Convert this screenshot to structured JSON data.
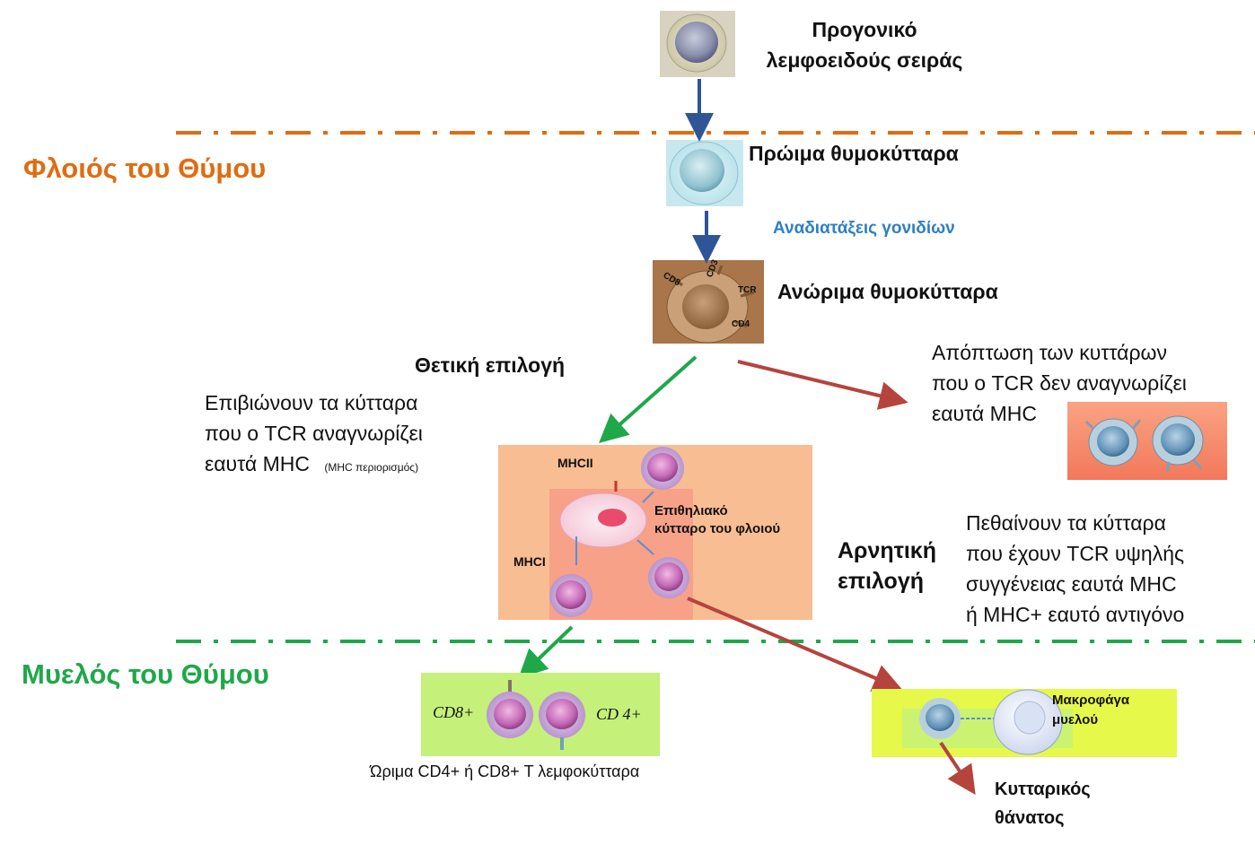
{
  "regions": {
    "cortex": {
      "label": "Φλοιός του Θύμου",
      "color": "#e06c10"
    },
    "medulla": {
      "label": "Μυελός του Θύμου",
      "color": "#1ea84a"
    }
  },
  "stages": {
    "progenitor": {
      "line1": "Προγονικό",
      "line2": "λεμφοειδούς σειράς"
    },
    "early": {
      "label": "Πρώιμα θυμοκύτταρα"
    },
    "rearrangement": {
      "label": "Αναδιατάξεις γονιδίων",
      "color": "#2e7fc3"
    },
    "immature": {
      "label": "Ανώριμα θυμοκύτταρα"
    }
  },
  "immature_markers": {
    "cd8": "CD8",
    "cd3": "CD3",
    "tcr": "TCR",
    "cd4": "CD4"
  },
  "positive": {
    "title": "Θετική επιλογή",
    "line1": "Επιβιώνουν τα κύτταρα",
    "line2": "που ο TCR αναγνωρίζει",
    "line3": "εαυτά MHC",
    "note": "(MHC περιορισμός)"
  },
  "apoptosis": {
    "line1": "Απόπτωση των κυττάρων",
    "line2": "που ο TCR δεν αναγνωρίζει",
    "line3": "εαυτά MHC"
  },
  "epithelial": {
    "mhcii": "MHCII",
    "mhci": "MHCI",
    "line1": "Επιθηλιακό",
    "line2": "κύτταρο του φλοιού"
  },
  "negative": {
    "title_line1": "Αρνητική",
    "title_line2": "επιλογή",
    "line1": "Πεθαίνουν  τα κύτταρα",
    "line2": "που έχουν TCR υψηλής",
    "line3": "συγγένειας εαυτά MHC",
    "line4": "ή MHC+ εαυτό αντιγόνο"
  },
  "mature": {
    "cd8": "CD8+",
    "cd4": "CD 4+",
    "caption": "Ώριμα CD4+ ή CD8+  Τ λεμφοκύτταρα"
  },
  "macrophage": {
    "line1": "Μακροφάγα",
    "line2": "μυελού"
  },
  "death": {
    "line1": "Κυτταρικός",
    "line2": "θάνατος"
  },
  "colors": {
    "blue_arrow": "#2f5597",
    "green_arrow": "#1ea84a",
    "red_arrow": "#b5443d",
    "salmon_panel": "#f8bd92",
    "lime_panel": "#c5f07a",
    "yellow_panel": "#e6f84a"
  }
}
